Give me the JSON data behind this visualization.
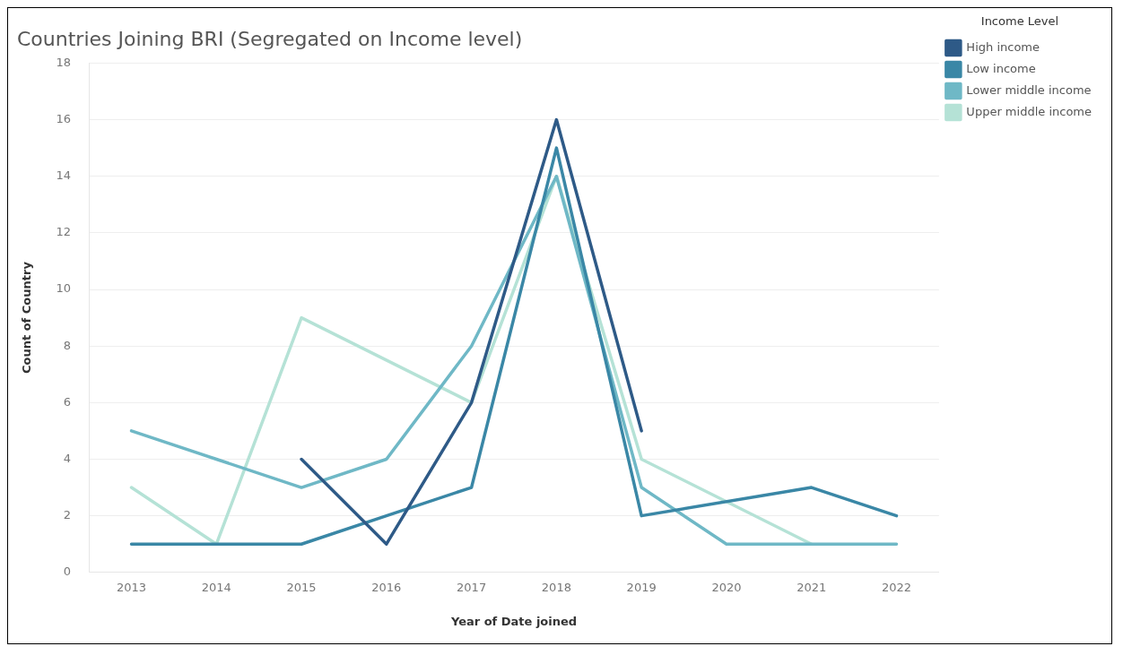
{
  "chart_data": {
    "type": "line",
    "title": "Countries Joining BRI (Segregated on Income level)",
    "xlabel": "Year of Date joined",
    "ylabel": "Count of Country",
    "legend_title": "Income Level",
    "legend": "top right",
    "grid": "y",
    "marker": "none",
    "line_style": "solid",
    "categories": [
      "2013",
      "2014",
      "2015",
      "2016",
      "2017",
      "2018",
      "2019",
      "2020",
      "2021",
      "2022"
    ],
    "ylim": [
      0,
      18
    ],
    "yticks": [
      0,
      2,
      4,
      6,
      8,
      10,
      12,
      14,
      16,
      18
    ],
    "series": [
      {
        "name": "High income",
        "color": "#2e5a87",
        "values": [
          null,
          null,
          4,
          1,
          6,
          16,
          5,
          null,
          null,
          null
        ]
      },
      {
        "name": "Low income",
        "color": "#3a87a6",
        "values": [
          1,
          1,
          1,
          2,
          3,
          15,
          2,
          null,
          3,
          2
        ]
      },
      {
        "name": "Lower middle income",
        "color": "#6fb8c6",
        "values": [
          5,
          4,
          3,
          4,
          8,
          14,
          3,
          1,
          1,
          1
        ]
      },
      {
        "name": "Upper middle income",
        "color": "#b5e2d6",
        "values": [
          3,
          1,
          9,
          null,
          6,
          14,
          4,
          null,
          1,
          null
        ]
      }
    ]
  }
}
